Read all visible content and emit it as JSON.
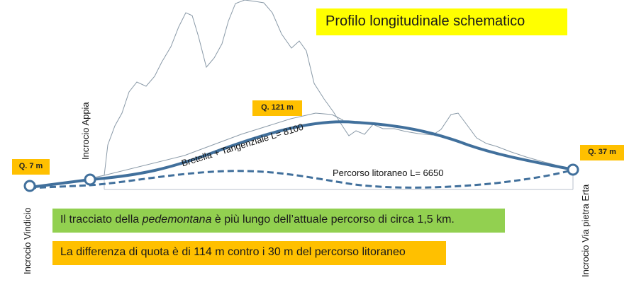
{
  "title": "Profilo longitudinale schematico",
  "elevations": {
    "start": "Q. 7 m",
    "peak": "Q. 121 m",
    "end": "Q. 37 m"
  },
  "places": {
    "start": "Incrocio Vindicio",
    "junction": "Incrocio Appia",
    "end": "Incrocio Via pietra Erta"
  },
  "routes": {
    "mountain": "Bretella + Tangenziale L= 8100",
    "coastal": "Percorso litoraneo L= 6650"
  },
  "notes": {
    "length_before": "Il tracciato della ",
    "length_emph": "pedemontana",
    "length_after": " è più lungo dell’attuale percorso di circa 1,5 km.",
    "height": "La differenza di quota è di 114 m contro i 30 m del percorso litoraneo"
  },
  "colors": {
    "route": "#41709c",
    "highlight_yellow": "#ffff00",
    "highlight_orange": "#ffc000",
    "highlight_green": "#92d050",
    "terrain_outline": "#8a9aa8"
  }
}
